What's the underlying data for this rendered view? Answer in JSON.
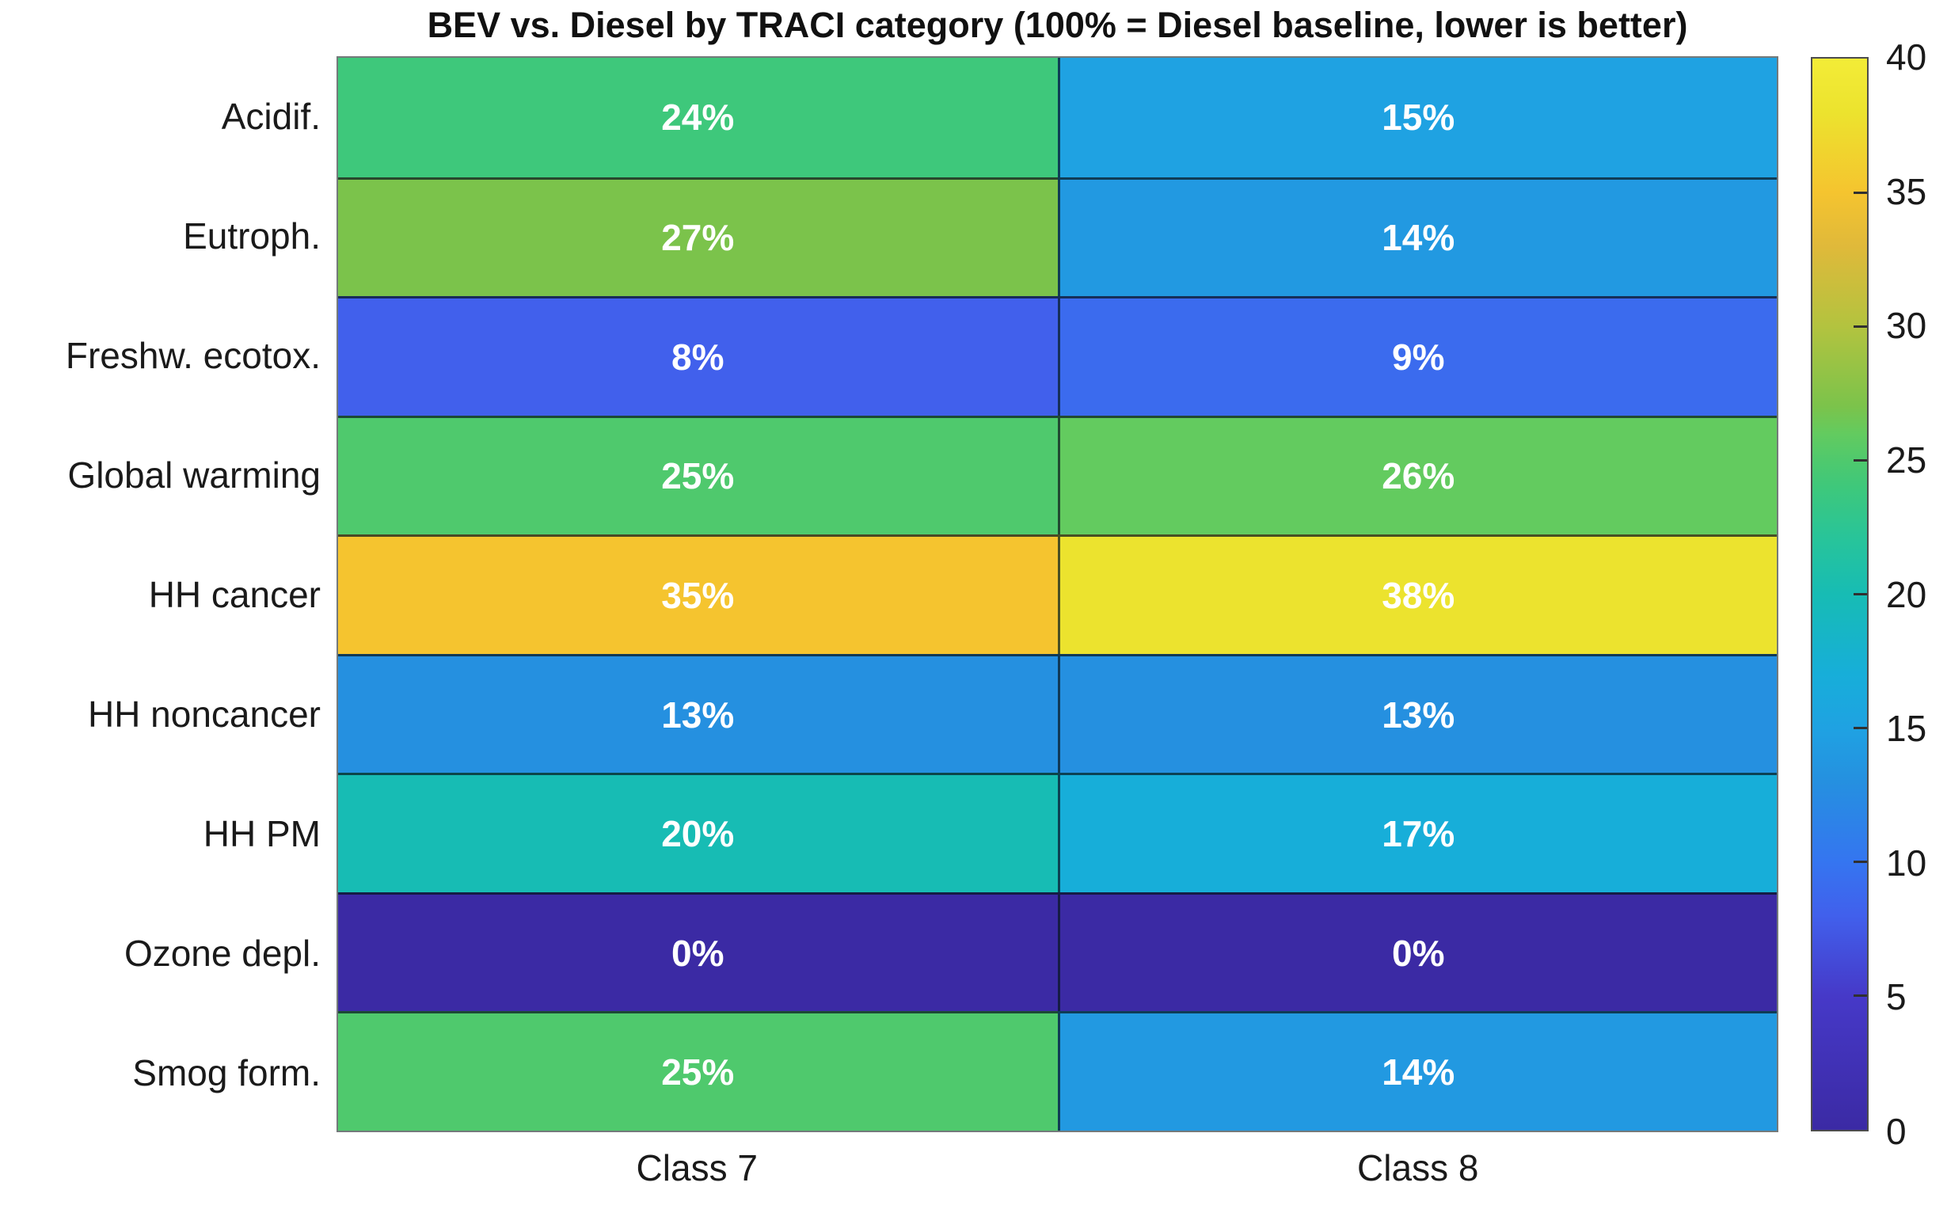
{
  "chart_data": {
    "type": "heatmap",
    "title": "BEV vs. Diesel by TRACI category (100% = Diesel baseline, lower is better)",
    "y_axis_categories": [
      "Acidif.",
      "Eutroph.",
      "Freshw. ecotox.",
      "Global warming",
      "HH cancer",
      "HH noncancer",
      "HH PM",
      "Ozone depl.",
      "Smog form."
    ],
    "x_axis_categories": [
      "Class 7",
      "Class 8"
    ],
    "values": [
      [
        24,
        15
      ],
      [
        27,
        14
      ],
      [
        8,
        9
      ],
      [
        25,
        26
      ],
      [
        35,
        38
      ],
      [
        13,
        13
      ],
      [
        20,
        17
      ],
      [
        0,
        0
      ],
      [
        25,
        14
      ]
    ],
    "value_suffix": "%",
    "grid": true,
    "colorbar": {
      "position": "right",
      "min": 0,
      "max": 40,
      "ticks": [
        0,
        5,
        10,
        15,
        20,
        25,
        30,
        35,
        40
      ]
    },
    "colormap_stops": [
      [
        0,
        "#3b2aa4"
      ],
      [
        5,
        "#4639c8"
      ],
      [
        8,
        "#4160ec"
      ],
      [
        10,
        "#3575f0"
      ],
      [
        13,
        "#2590e0"
      ],
      [
        15,
        "#1fa2e2"
      ],
      [
        17,
        "#17aed9"
      ],
      [
        20,
        "#17bcb4"
      ],
      [
        22,
        "#27c49b"
      ],
      [
        24,
        "#3ec87b"
      ],
      [
        25,
        "#4fc96d"
      ],
      [
        26,
        "#63cb5f"
      ],
      [
        27,
        "#7bc34b"
      ],
      [
        30,
        "#b3c33f"
      ],
      [
        33,
        "#e0b93a"
      ],
      [
        35,
        "#f5c42f"
      ],
      [
        38,
        "#ece32e"
      ],
      [
        40,
        "#f3ec37"
      ]
    ],
    "style": {
      "cell_text_color": "#ffffff",
      "label_text_color": "#1a1a1a",
      "grid_line_color": "rgba(8,24,32,0.72)"
    }
  }
}
